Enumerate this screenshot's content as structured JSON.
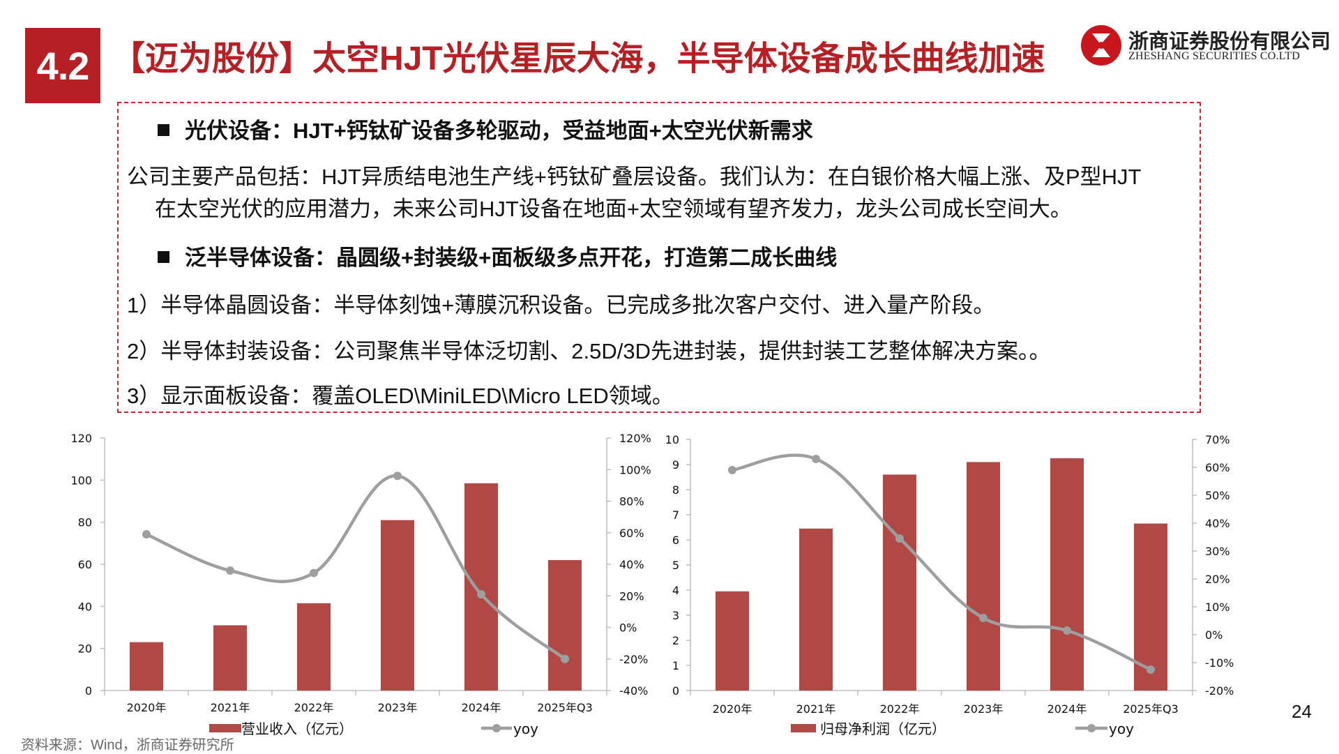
{
  "header": {
    "section_number": "4.2",
    "title": "【迈为股份】太空HJT光伏星辰大海，半导体设备成长曲线加速",
    "brand_cn": "浙商证券股份有限公司",
    "brand_en": "ZHESHANG SECURITIES CO.LTD",
    "brand_color": "#b61f24"
  },
  "textbox": {
    "heading1": "光伏设备：HJT+钙钛矿设备多轮驱动，受益地面+太空光伏新需求",
    "para1_line1": "公司主要产品包括：HJT异质结电池生产线+钙钛矿叠层设备。我们认为：在白银价格大幅上涨、及P型HJT",
    "para1_line2": "在太空光伏的应用潜力，未来公司HJT设备在地面+太空领域有望齐发力，龙头公司成长空间大。",
    "heading2": "泛半导体设备：晶圆级+封装级+面板级多点开花，打造第二成长曲线",
    "item1": "1）半导体晶圆设备：半导体刻蚀+薄膜沉积设备。已完成多批次客户交付、进入量产阶段。",
    "item2": "2）半导体封装设备：公司聚焦半导体泛切割、2.5D/3D先进封装，提供封装工艺整体解决方案。。",
    "item3": "3）显示面板设备：覆盖OLED\\MiniLED\\Micro LED领域。"
  },
  "footer": {
    "source": "资料来源：Wind，浙商证券研究所",
    "page_number": "24"
  },
  "chart_data": [
    {
      "type": "bar",
      "categories": [
        "2020年",
        "2021年",
        "2022年",
        "2023年",
        "2024年",
        "2025年Q3"
      ],
      "series": [
        {
          "name": "营业收入（亿元）",
          "axis": "left",
          "type": "bar",
          "values": [
            23,
            31,
            41.5,
            81,
            98.5,
            62
          ],
          "color": "#b04846"
        },
        {
          "name": "yoy",
          "axis": "right",
          "type": "line",
          "values": [
            59,
            36,
            34.5,
            96,
            21,
            -20
          ],
          "color": "#9e9e9e"
        }
      ],
      "ylim_left": [
        0,
        120
      ],
      "yticks_left": [
        "0",
        "20",
        "40",
        "60",
        "80",
        "100",
        "120"
      ],
      "ylim_right": [
        -40,
        120
      ],
      "yticks_right": [
        "-40%",
        "-20%",
        "0%",
        "20%",
        "40%",
        "60%",
        "80%",
        "100%",
        "120%"
      ],
      "legend": "bottom"
    },
    {
      "type": "bar",
      "categories": [
        "2020年",
        "2021年",
        "2022年",
        "2023年",
        "2024年",
        "2025年Q3"
      ],
      "series": [
        {
          "name": "归母净利润（亿元）",
          "axis": "left",
          "type": "bar",
          "values": [
            3.95,
            6.45,
            8.6,
            9.1,
            9.25,
            6.65
          ],
          "color": "#b04846"
        },
        {
          "name": "yoy",
          "axis": "right",
          "type": "line",
          "values": [
            59,
            63,
            34.5,
            6,
            1.5,
            -12.5
          ],
          "color": "#9e9e9e"
        }
      ],
      "ylim_left": [
        0,
        10
      ],
      "yticks_left": [
        "0",
        "1",
        "2",
        "3",
        "4",
        "5",
        "6",
        "7",
        "8",
        "9",
        "10"
      ],
      "ylim_right": [
        -20,
        70
      ],
      "yticks_right": [
        "-20%",
        "-10%",
        "0%",
        "10%",
        "20%",
        "30%",
        "40%",
        "50%",
        "60%",
        "70%"
      ],
      "legend": "bottom"
    }
  ]
}
